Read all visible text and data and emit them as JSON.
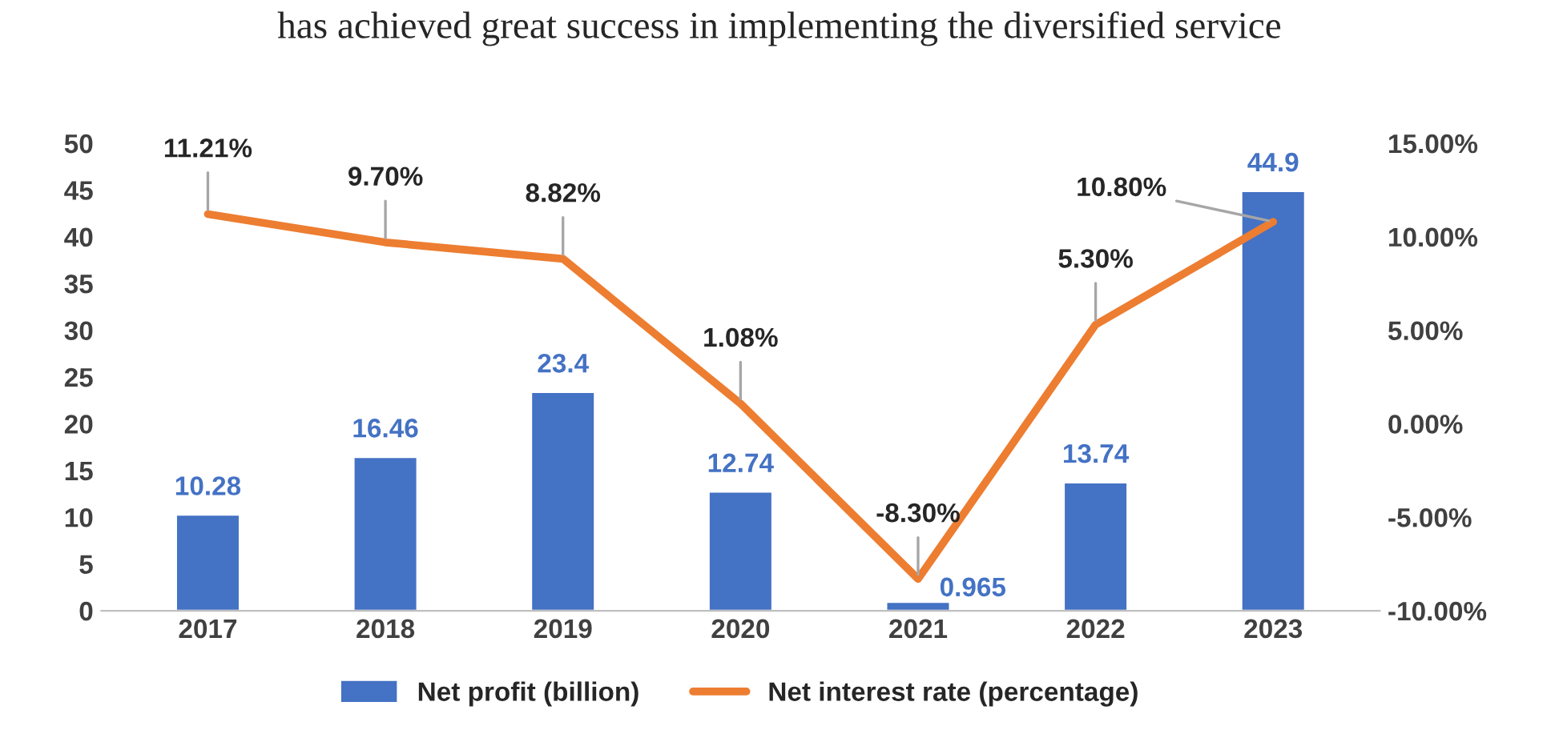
{
  "chart_data": {
    "type": "bar",
    "annotations": [
      "has achieved great success in implementing the diversified service"
    ],
    "categories": [
      "2017",
      "2018",
      "2019",
      "2020",
      "2021",
      "2022",
      "2023"
    ],
    "series": [
      {
        "name": "Net profit (billion)",
        "color": "#4472c4",
        "values": [
          10.28,
          16.46,
          23.4,
          12.74,
          0.965,
          13.74,
          44.9
        ],
        "value_labels": [
          "10.28",
          "16.46",
          "23.4",
          "12.74",
          "0.965",
          "13.74",
          "44.9"
        ]
      },
      {
        "name": "Net interest rate (percentage)",
        "type": "line",
        "axis": "y2",
        "color": "#ed7d31",
        "values": [
          11.21,
          9.7,
          8.82,
          1.08,
          -8.3,
          5.3,
          10.8
        ],
        "value_labels": [
          "11.21%",
          "9.70%",
          "8.82%",
          "1.08%",
          "-8.30%",
          "5.30%",
          "10.80%"
        ]
      }
    ],
    "ylim": [
      0,
      50
    ],
    "yticks": [
      0,
      5,
      10,
      15,
      20,
      25,
      30,
      35,
      40,
      45,
      50
    ],
    "y2lim": [
      -10,
      15
    ],
    "y2ticks": [
      {
        "value": -10,
        "label": "-10.00%"
      },
      {
        "value": -5,
        "label": "-5.00%"
      },
      {
        "value": 0,
        "label": "0.00%"
      },
      {
        "value": 5,
        "label": "5.00%"
      },
      {
        "value": 10,
        "label": "10.00%"
      },
      {
        "value": 15,
        "label": "15.00%"
      }
    ],
    "grid": false,
    "legend": "bottom",
    "marker": "none",
    "line_style": "solid"
  }
}
